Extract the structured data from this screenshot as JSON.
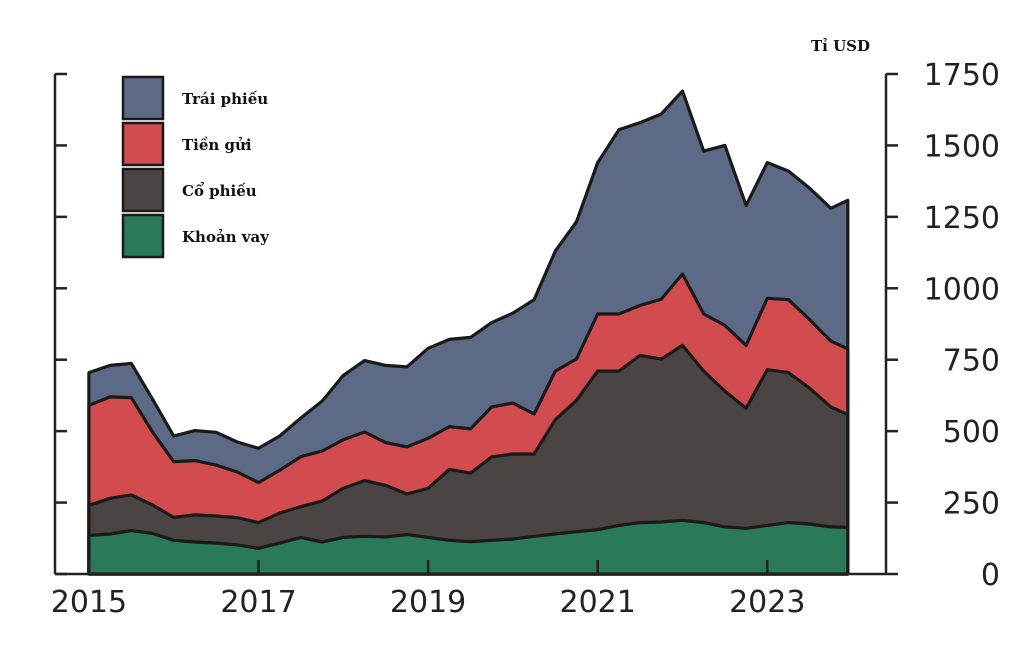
{
  "chart_data": {
    "type": "area",
    "stacked": true,
    "unit_label": "Tỉ USD",
    "x_ticks": [
      2015,
      2017,
      2019,
      2021,
      2023
    ],
    "y_ticks": [
      0,
      250,
      500,
      750,
      1000,
      1250,
      1500,
      1750
    ],
    "xlim": [
      2014.6,
      2024.4
    ],
    "ylim": [
      0,
      1750
    ],
    "y_axis_position": "right",
    "grid": false,
    "legend_position": "top-left",
    "x": [
      2015.0,
      2015.25,
      2015.5,
      2015.75,
      2016.0,
      2016.25,
      2016.5,
      2016.75,
      2017.0,
      2017.25,
      2017.5,
      2017.75,
      2018.0,
      2018.25,
      2018.5,
      2018.75,
      2019.0,
      2019.25,
      2019.5,
      2019.75,
      2020.0,
      2020.25,
      2020.5,
      2020.75,
      2021.0,
      2021.25,
      2021.5,
      2021.75,
      2022.0,
      2022.25,
      2022.5,
      2022.75,
      2023.0,
      2023.25,
      2023.5,
      2023.75,
      2023.95
    ],
    "series": [
      {
        "name": "Khoản vay",
        "color": "#2a7a5a",
        "values": [
          135,
          140,
          152,
          142,
          118,
          112,
          108,
          102,
          90,
          108,
          128,
          112,
          128,
          132,
          130,
          138,
          128,
          118,
          113,
          118,
          122,
          132,
          140,
          148,
          155,
          170,
          180,
          182,
          188,
          180,
          165,
          160,
          170,
          180,
          175,
          165,
          163
        ]
      },
      {
        "name": "Cổ phiếu",
        "color": "#4a4442",
        "values": [
          105,
          125,
          125,
          100,
          80,
          95,
          95,
          95,
          90,
          105,
          108,
          143,
          172,
          195,
          180,
          142,
          172,
          248,
          240,
          292,
          298,
          288,
          400,
          460,
          555,
          540,
          585,
          570,
          612,
          530,
          475,
          420,
          545,
          525,
          475,
          420,
          395
        ]
      },
      {
        "name": "Tiền gửi",
        "color": "#d24b4f",
        "values": [
          350,
          355,
          340,
          255,
          195,
          190,
          178,
          160,
          140,
          150,
          175,
          175,
          170,
          170,
          150,
          165,
          175,
          150,
          155,
          175,
          178,
          140,
          170,
          145,
          200,
          200,
          175,
          210,
          250,
          200,
          230,
          220,
          250,
          255,
          240,
          230,
          230
        ]
      },
      {
        "name": "Trái phiếu",
        "color": "#5c6a85",
        "values": [
          115,
          110,
          120,
          115,
          90,
          105,
          115,
          105,
          120,
          120,
          135,
          175,
          225,
          250,
          270,
          280,
          315,
          305,
          320,
          295,
          315,
          400,
          420,
          480,
          530,
          645,
          640,
          648,
          640,
          570,
          630,
          490,
          475,
          450,
          460,
          465,
          520
        ]
      }
    ]
  }
}
